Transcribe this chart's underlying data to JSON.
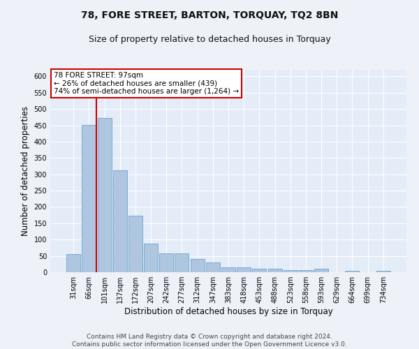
{
  "title1": "78, FORE STREET, BARTON, TORQUAY, TQ2 8BN",
  "title2": "Size of property relative to detached houses in Torquay",
  "xlabel": "Distribution of detached houses by size in Torquay",
  "ylabel": "Number of detached properties",
  "categories": [
    "31sqm",
    "66sqm",
    "101sqm",
    "137sqm",
    "172sqm",
    "207sqm",
    "242sqm",
    "277sqm",
    "312sqm",
    "347sqm",
    "383sqm",
    "418sqm",
    "453sqm",
    "488sqm",
    "523sqm",
    "558sqm",
    "593sqm",
    "629sqm",
    "664sqm",
    "699sqm",
    "734sqm"
  ],
  "values": [
    55,
    452,
    472,
    313,
    174,
    88,
    57,
    57,
    41,
    30,
    15,
    15,
    10,
    10,
    6,
    6,
    10,
    0,
    4,
    0,
    5
  ],
  "bar_color": "#aec6e0",
  "bar_edge_color": "#5a96c8",
  "annotation_text_line1": "78 FORE STREET: 97sqm",
  "annotation_text_line2": "← 26% of detached houses are smaller (439)",
  "annotation_text_line3": "74% of semi-detached houses are larger (1,264) →",
  "annotation_box_color": "#ffffff",
  "annotation_box_edge": "#cc0000",
  "vline_color": "#cc0000",
  "vline_x_index": 2,
  "ylim": [
    0,
    620
  ],
  "yticks": [
    0,
    50,
    100,
    150,
    200,
    250,
    300,
    350,
    400,
    450,
    500,
    550,
    600
  ],
  "footer1": "Contains HM Land Registry data © Crown copyright and database right 2024.",
  "footer2": "Contains public sector information licensed under the Open Government Licence v3.0.",
  "bg_color": "#eef2f8",
  "plot_bg_color": "#e4ecf7",
  "title1_fontsize": 10,
  "title2_fontsize": 9,
  "xlabel_fontsize": 8.5,
  "ylabel_fontsize": 8.5,
  "footer_fontsize": 6.5,
  "tick_fontsize": 7,
  "ann_fontsize": 7.5
}
